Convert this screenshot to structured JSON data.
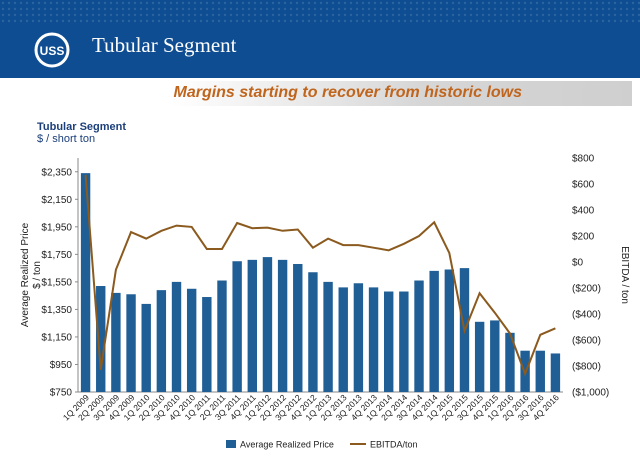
{
  "header": {
    "title": "Tubular Segment",
    "logo_text": "USS",
    "banner_color": "#0e4d92"
  },
  "subtitle": "Margins starting to recover from historic lows",
  "chart_data": {
    "type": "bar",
    "title": "Tubular Segment",
    "subtitle": "$ / short ton",
    "categories": [
      "1Q 2009",
      "2Q 2009",
      "3Q 2009",
      "4Q 2009",
      "1Q 2010",
      "2Q 2010",
      "3Q 2010",
      "4Q 2010",
      "1Q 2011",
      "2Q 2011",
      "3Q 2011",
      "4Q 2011",
      "1Q 2012",
      "2Q 2012",
      "3Q 2012",
      "4Q 2012",
      "1Q 2013",
      "2Q 2013",
      "3Q 2013",
      "4Q 2013",
      "1Q 2014",
      "2Q 2014",
      "3Q 2014",
      "4Q 2014",
      "1Q 2015",
      "2Q 2015",
      "3Q 2015",
      "4Q 2015",
      "1Q 2016",
      "2Q 2016",
      "3Q 2016",
      "4Q 2016"
    ],
    "y_left": {
      "label": "Average Realized Price\n$ / ton",
      "range": [
        750,
        2450
      ],
      "ticks": [
        "$750",
        "$950",
        "$1,150",
        "$1,350",
        "$1,550",
        "$1,750",
        "$1,950",
        "$2,150",
        "$2,350"
      ]
    },
    "y_right": {
      "label": "EBITDA / ton",
      "range": [
        -1000,
        800
      ],
      "ticks": [
        "($1,000)",
        "($800)",
        "($600)",
        "($400)",
        "($200)",
        "$0",
        "$200",
        "$400",
        "$600",
        "$800"
      ]
    },
    "series": [
      {
        "name": "Average Realized Price",
        "type": "bar",
        "axis": "left",
        "color": "#1f5f96",
        "values": [
          2340,
          1520,
          1470,
          1460,
          1390,
          1490,
          1550,
          1500,
          1440,
          1560,
          1700,
          1710,
          1730,
          1710,
          1680,
          1620,
          1550,
          1510,
          1540,
          1510,
          1480,
          1480,
          1560,
          1630,
          1640,
          1650,
          1260,
          1270,
          1180,
          1050,
          1050,
          1030
        ]
      },
      {
        "name": "EBITDA/ton",
        "type": "line",
        "axis": "right",
        "color": "#8b5a1e",
        "values": [
          670,
          -830,
          -60,
          230,
          180,
          240,
          280,
          270,
          100,
          100,
          300,
          260,
          265,
          240,
          250,
          110,
          180,
          130,
          130,
          110,
          90,
          140,
          200,
          305,
          70,
          -530,
          -240,
          -390,
          -550,
          -860,
          -560,
          -510
        ]
      }
    ],
    "legend": "bottom",
    "grid": false
  }
}
